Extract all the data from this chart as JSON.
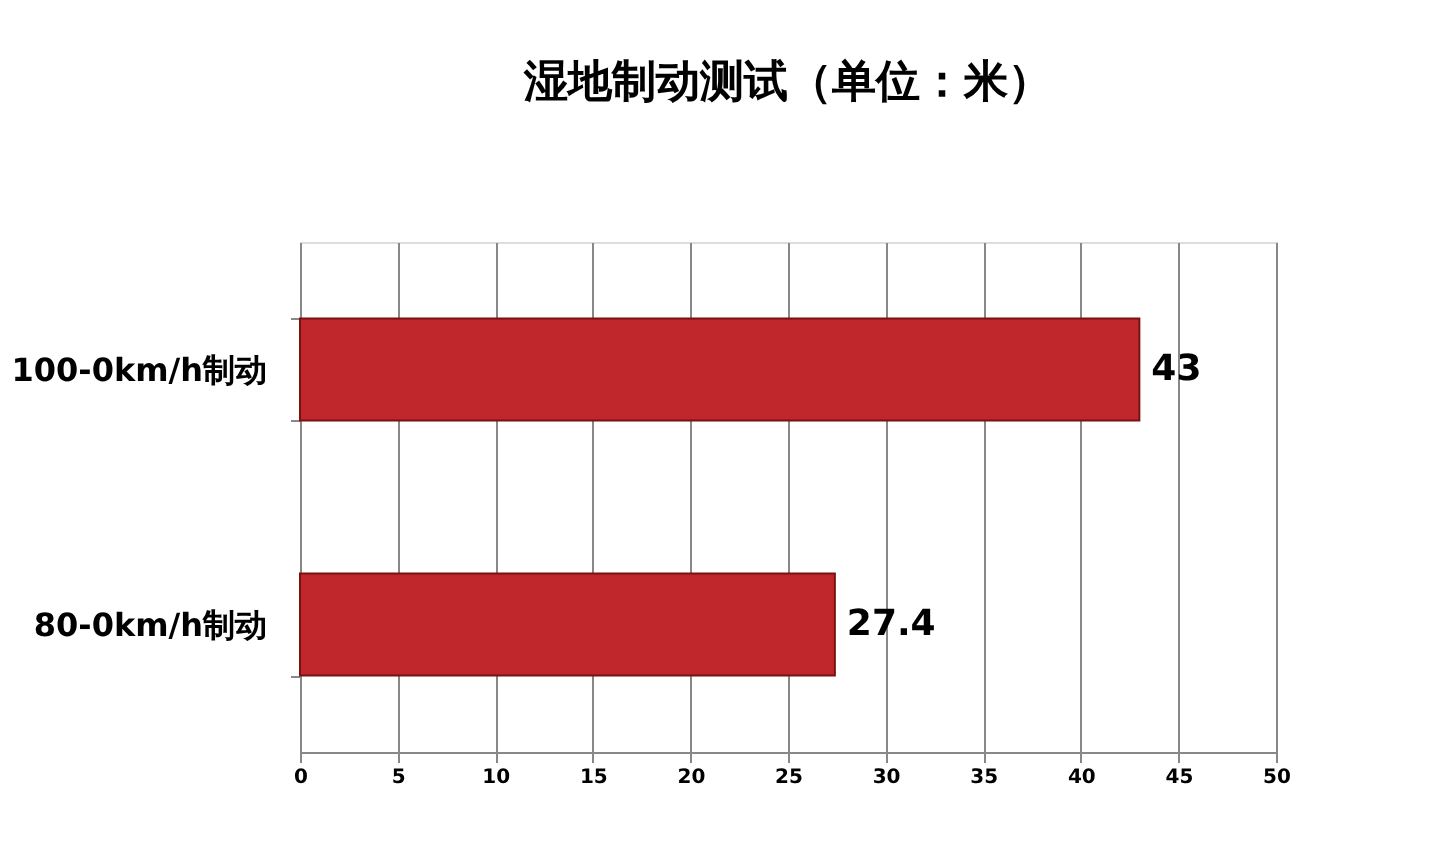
{
  "chart_data": {
    "type": "bar",
    "title": "湿地制动测试（单位：米）",
    "orientation": "horizontal",
    "categories": [
      "100-0km/h制动",
      "80-0km/h制动"
    ],
    "series": [
      {
        "color": "#c0272d",
        "values": [
          43,
          27.4
        ]
      }
    ],
    "xlim": [
      0,
      50
    ],
    "xticks": [
      0,
      5,
      10,
      15,
      20,
      25,
      30,
      35,
      40,
      45,
      50
    ],
    "grid": "x",
    "data_labels": true
  }
}
